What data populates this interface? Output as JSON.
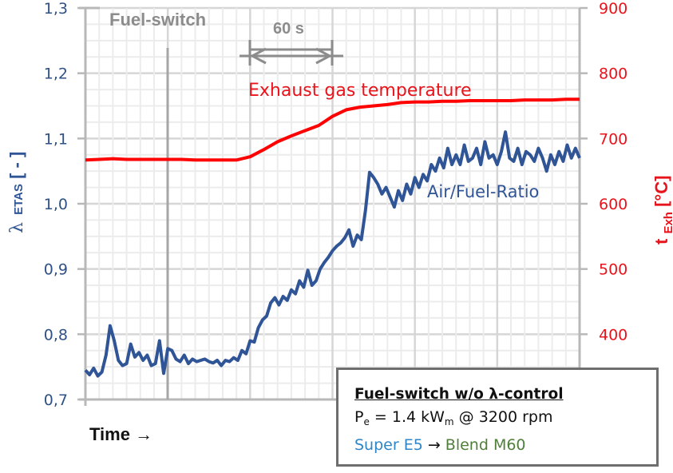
{
  "chart_data": {
    "type": "line",
    "title": "",
    "xlabel": "Time →",
    "x_ticks_visible": false,
    "grid": true,
    "legend": "none (inline labels)",
    "y_left": {
      "label_main": "λ",
      "label_sub": "ETAS",
      "label_unit": " [ - ]",
      "ticks": [
        "0,7",
        "0,8",
        "0,9",
        "1,0",
        "1,1",
        "1,2",
        "1,3"
      ],
      "range": [
        0.7,
        1.3
      ],
      "color": "#2f5597"
    },
    "y_right": {
      "label_main": "t",
      "label_sub": "Exh",
      "label_unit": " [°C]",
      "ticks": [
        "400",
        "500",
        "600",
        "700",
        "800",
        "900"
      ],
      "range": [
        300,
        900
      ],
      "color": "#e8141c"
    },
    "x_range_seconds": [
      0,
      360
    ],
    "series": [
      {
        "name": "Exhaust gas temperature",
        "axis": "right",
        "color": "#ff0000",
        "x": [
          0,
          10,
          20,
          30,
          40,
          50,
          60,
          70,
          80,
          90,
          100,
          110,
          120,
          130,
          140,
          150,
          160,
          170,
          180,
          190,
          200,
          210,
          220,
          230,
          240,
          250,
          260,
          270,
          280,
          290,
          300,
          310,
          320,
          330,
          340,
          350,
          360
        ],
        "values": [
          667,
          668,
          669,
          668,
          668,
          668,
          668,
          668,
          667,
          667,
          667,
          667,
          672,
          683,
          695,
          704,
          712,
          720,
          734,
          744,
          748,
          750,
          752,
          755,
          756,
          756,
          757,
          757,
          758,
          758,
          758,
          758,
          759,
          759,
          759,
          760,
          760
        ]
      },
      {
        "name": "Air/Fuel-Ratio",
        "axis": "left",
        "color": "#2f5597",
        "x": [
          0,
          3,
          6,
          9,
          12,
          15,
          18,
          21,
          24,
          27,
          30,
          33,
          36,
          39,
          42,
          45,
          48,
          51,
          54,
          57,
          60,
          63,
          66,
          69,
          72,
          75,
          78,
          81,
          84,
          87,
          90,
          93,
          96,
          99,
          102,
          105,
          108,
          111,
          114,
          117,
          120,
          123,
          126,
          129,
          132,
          135,
          138,
          141,
          144,
          147,
          150,
          153,
          156,
          159,
          162,
          165,
          168,
          171,
          174,
          177,
          180,
          183,
          186,
          189,
          192,
          195,
          198,
          201,
          204,
          207,
          210,
          213,
          216,
          219,
          222,
          225,
          228,
          231,
          234,
          237,
          240,
          243,
          246,
          249,
          252,
          255,
          258,
          261,
          264,
          267,
          270,
          273,
          276,
          279,
          282,
          285,
          288,
          291,
          294,
          297,
          300,
          303,
          306,
          309,
          312,
          315,
          318,
          321,
          324,
          327,
          330,
          333,
          336,
          339,
          342,
          345,
          348,
          351,
          354,
          357,
          360
        ],
        "values": [
          0.745,
          0.738,
          0.748,
          0.736,
          0.742,
          0.768,
          0.813,
          0.79,
          0.76,
          0.752,
          0.755,
          0.785,
          0.765,
          0.772,
          0.76,
          0.768,
          0.752,
          0.755,
          0.79,
          0.74,
          0.778,
          0.775,
          0.762,
          0.758,
          0.768,
          0.755,
          0.762,
          0.758,
          0.76,
          0.762,
          0.758,
          0.756,
          0.76,
          0.752,
          0.76,
          0.758,
          0.764,
          0.76,
          0.775,
          0.77,
          0.79,
          0.788,
          0.81,
          0.822,
          0.828,
          0.848,
          0.856,
          0.845,
          0.858,
          0.852,
          0.868,
          0.862,
          0.882,
          0.872,
          0.898,
          0.875,
          0.882,
          0.9,
          0.91,
          0.918,
          0.928,
          0.935,
          0.94,
          0.948,
          0.96,
          0.935,
          0.952,
          0.945,
          0.99,
          1.048,
          1.04,
          1.03,
          1.015,
          1.025,
          1.01,
          0.995,
          1.02,
          1.005,
          1.03,
          1.015,
          1.04,
          1.025,
          1.045,
          1.035,
          1.06,
          1.05,
          1.07,
          1.055,
          1.085,
          1.06,
          1.075,
          1.06,
          1.09,
          1.065,
          1.07,
          1.085,
          1.06,
          1.095,
          1.07,
          1.075,
          1.06,
          1.08,
          1.11,
          1.07,
          1.065,
          1.085,
          1.06,
          1.08,
          1.075,
          1.065,
          1.085,
          1.07,
          1.05,
          1.075,
          1.06,
          1.08,
          1.065,
          1.09,
          1.07,
          1.085,
          1.07
        ]
      }
    ],
    "annotations": [
      {
        "text": "Fuel-switch",
        "type": "vertical-line",
        "x_seconds": 60
      },
      {
        "text": "60 s",
        "type": "dimension-arrow",
        "x_from_seconds": 120,
        "x_to_seconds": 180
      },
      {
        "text": "Exhaust gas temperature",
        "type": "series-label"
      },
      {
        "text": "Air/Fuel-Ratio",
        "type": "series-label"
      }
    ]
  },
  "labels": {
    "fuel_switch": "Fuel-switch",
    "duration": "60 s",
    "exhaust_label": "Exhaust gas temperature",
    "afr_label": "Air/Fuel-Ratio",
    "x_axis": "Time →"
  },
  "info_box": {
    "title": "Fuel-switch w/o λ-control",
    "power_symbol": "P",
    "power_sub": "e",
    "power_eq": " = 1.4 kW",
    "power_unit_sub": "m",
    "power_rest": " @ 3200 rpm",
    "fuel_from": "Super E5",
    "arrow": " → ",
    "fuel_to": "Blend M60"
  },
  "colors": {
    "grid_minor": "#ececec",
    "grid_major": "#d6d6d6",
    "axis": "#b8b8b8",
    "marker_line": "#a6a6a6",
    "box_border": "#6e6e6e"
  }
}
